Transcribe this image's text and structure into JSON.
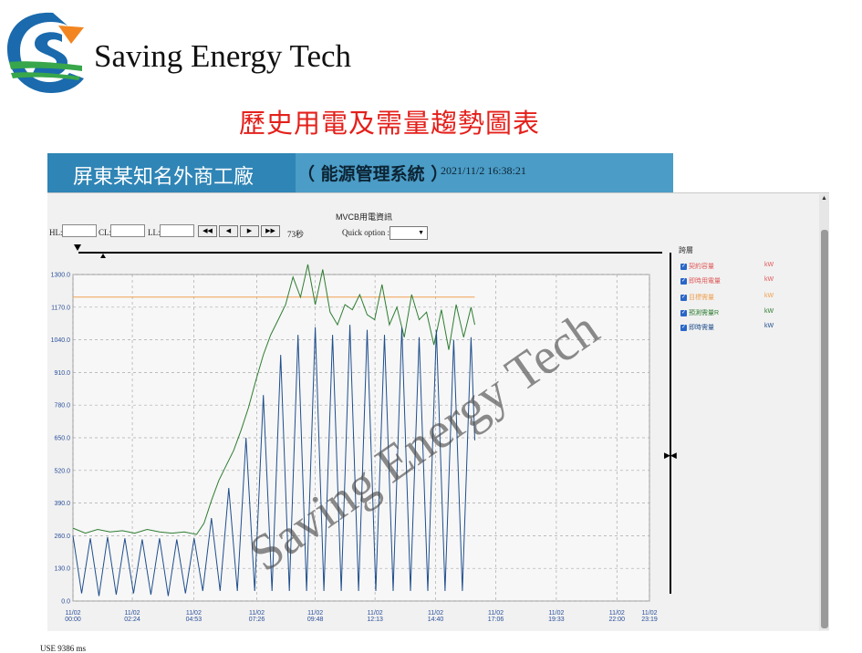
{
  "brand": {
    "name": "Saving Energy Tech",
    "logo_colors": {
      "blue": "#1a6aad",
      "green": "#38a64b",
      "orange": "#f2851f"
    }
  },
  "slide_title": "歷史用電及需量趨勢圖表",
  "header": {
    "factory_name": "屏東某知名外商工廠",
    "system_name": "（ 能源管理系統 ）",
    "datetime": "2021/11/2 16:38:21",
    "colors": {
      "band": "#4b9cc6",
      "band_dark": "#2f85b6"
    }
  },
  "panel": {
    "title": "MVCB用電資訊",
    "hl_label": "HL:",
    "cl_label": "CL:",
    "ll_label": "LL:",
    "nav_buttons": [
      "◀◀",
      "◀",
      "▶",
      "▶▶"
    ],
    "step_text": "73秒",
    "quick_option_label": "Quick option :",
    "quick_option_value": "▼"
  },
  "legend": {
    "title": "跨層",
    "items": [
      {
        "label": "契約容量",
        "unit": "kW",
        "color": "#e05a5a"
      },
      {
        "label": "即時用電量",
        "unit": "kW",
        "color": "#e05a5a"
      },
      {
        "label": "目標需量",
        "unit": "kW",
        "color": "#f0a050"
      },
      {
        "label": "預測需量R",
        "unit": "kW",
        "color": "#2e7d32"
      },
      {
        "label": "即時需量",
        "unit": "kW",
        "color": "#1f4e8c"
      }
    ]
  },
  "chart_data": {
    "type": "line",
    "y_ticks": [
      "0.0",
      "130.0",
      "260.0",
      "390.0",
      "520.0",
      "650.0",
      "780.0",
      "910.0",
      "1040.0",
      "1170.0",
      "1300.0"
    ],
    "ylim": [
      0,
      1300
    ],
    "x_ticks": [
      [
        "11/02",
        "00:00"
      ],
      [
        "11/02",
        "02:24"
      ],
      [
        "11/02",
        "04:53"
      ],
      [
        "11/02",
        "07:26"
      ],
      [
        "11/02",
        "09:48"
      ],
      [
        "11/02",
        "12:13"
      ],
      [
        "11/02",
        "14:40"
      ],
      [
        "11/02",
        "17:06"
      ],
      [
        "11/02",
        "19:33"
      ],
      [
        "11/02",
        "22:00"
      ],
      [
        "11/02",
        "23:19"
      ]
    ],
    "x_hours": [
      0,
      2.4,
      4.883,
      7.433,
      9.8,
      12.217,
      14.667,
      17.1,
      19.55,
      22.0,
      23.317
    ],
    "xlim_hours": [
      0,
      23.317
    ],
    "grid": true,
    "target_line": {
      "value": 1210,
      "from_hour": 0,
      "to_hour": 16.25,
      "color": "#f0a050"
    },
    "series": [
      {
        "color": "#2e7d32",
        "hours": [
          0,
          0.5,
          1,
          1.5,
          2,
          2.5,
          3,
          3.5,
          4,
          4.5,
          5,
          5.3,
          5.6,
          5.9,
          6.2,
          6.5,
          6.8,
          7.1,
          7.4,
          7.7,
          8.0,
          8.3,
          8.6,
          8.9,
          9.2,
          9.5,
          9.8,
          10.1,
          10.4,
          10.7,
          11.0,
          11.3,
          11.6,
          11.9,
          12.2,
          12.5,
          12.8,
          13.1,
          13.4,
          13.7,
          14.0,
          14.3,
          14.6,
          14.9,
          15.2,
          15.5,
          15.8,
          16.1,
          16.25
        ],
        "values": [
          290,
          270,
          285,
          275,
          280,
          270,
          285,
          275,
          270,
          275,
          265,
          310,
          400,
          480,
          540,
          600,
          680,
          770,
          880,
          980,
          1060,
          1120,
          1180,
          1290,
          1210,
          1340,
          1180,
          1320,
          1150,
          1100,
          1180,
          1160,
          1220,
          1140,
          1120,
          1260,
          1100,
          1170,
          1050,
          1220,
          1120,
          1150,
          1020,
          1160,
          1000,
          1180,
          1050,
          1170,
          1100
        ]
      },
      {
        "color": "#1f4e8c",
        "hours": [
          0,
          0.35,
          0.7,
          1.05,
          1.4,
          1.75,
          2.1,
          2.45,
          2.8,
          3.15,
          3.5,
          3.85,
          4.2,
          4.55,
          4.9,
          5.25,
          5.6,
          5.95,
          6.3,
          6.65,
          7.0,
          7.35,
          7.7,
          8.05,
          8.4,
          8.75,
          9.1,
          9.45,
          9.8,
          10.15,
          10.5,
          10.85,
          11.2,
          11.55,
          11.9,
          12.25,
          12.6,
          12.95,
          13.3,
          13.65,
          14.0,
          14.35,
          14.7,
          15.05,
          15.4,
          15.75,
          16.1,
          16.25
        ],
        "values": [
          260,
          30,
          250,
          20,
          255,
          25,
          250,
          30,
          245,
          25,
          250,
          20,
          245,
          30,
          250,
          40,
          330,
          40,
          450,
          40,
          650,
          40,
          820,
          40,
          980,
          40,
          1060,
          40,
          1090,
          40,
          1060,
          40,
          1100,
          40,
          1080,
          40,
          1060,
          40,
          1090,
          40,
          1050,
          40,
          1080,
          40,
          1040,
          40,
          1050,
          640
        ]
      }
    ]
  },
  "watermark": "Saving Energy Tech",
  "footer": "USE 9386 ms"
}
